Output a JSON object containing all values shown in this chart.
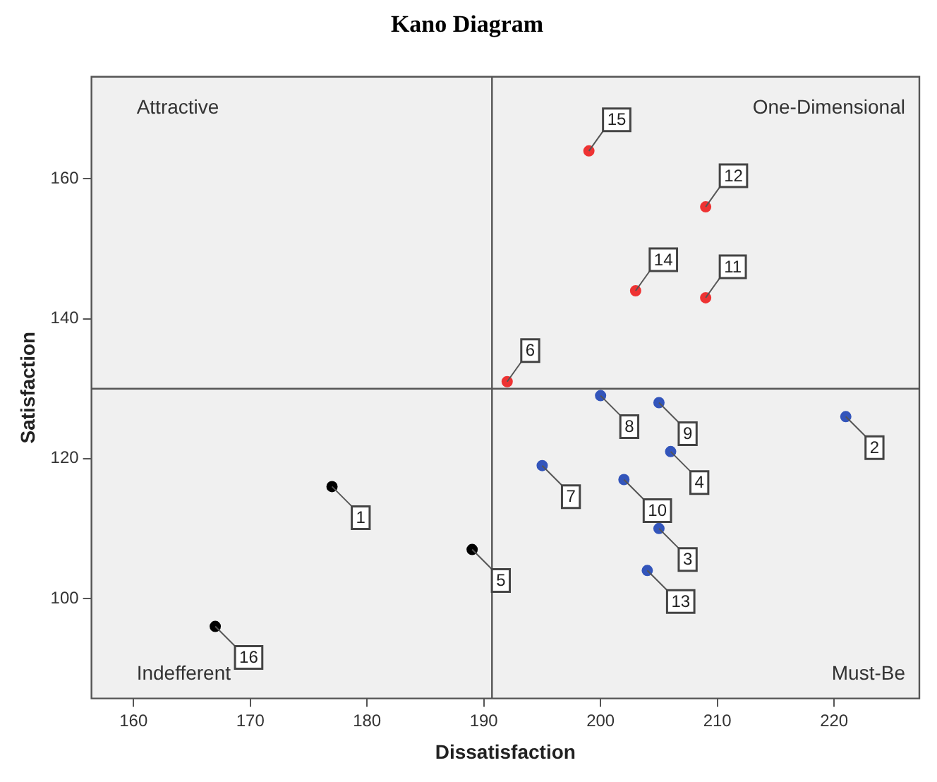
{
  "chart_data": {
    "type": "scatter",
    "title": "Kano Diagram",
    "xlabel": "Dissatisfaction",
    "ylabel": "Satisfaction",
    "series": [
      {
        "color": "#000000",
        "x": [
          177,
          189,
          167
        ],
        "values": [
          116,
          107,
          96
        ]
      },
      {
        "color": "#ee3333",
        "x": [
          199,
          209,
          203,
          209,
          192
        ],
        "values": [
          164,
          156,
          144,
          143,
          131
        ]
      },
      {
        "color": "#3355bb",
        "x": [
          200,
          205,
          221,
          206,
          195,
          202,
          205,
          204
        ],
        "values": [
          129,
          128,
          126,
          121,
          119,
          117,
          110,
          104
        ]
      }
    ],
    "xlim": [
      156.4,
      227.3
    ],
    "xticks": [
      160,
      170,
      180,
      190,
      200,
      210,
      220
    ],
    "ylim": [
      85.7,
      174.6
    ],
    "yticks": [
      100,
      120,
      140,
      160
    ],
    "ref_lines": [
      {
        "axis": "x",
        "value": 190.7,
        "color": "#555555"
      },
      {
        "axis": "y",
        "value": 130,
        "color": "#555555"
      }
    ],
    "annotations": [
      "Attractive",
      "One-Dimensional",
      "Indefferent",
      "Must-Be",
      {
        "text": "1",
        "x": 177,
        "y": 116
      },
      {
        "text": "5",
        "x": 189,
        "y": 107
      },
      {
        "text": "16",
        "x": 167,
        "y": 96
      },
      {
        "text": "15",
        "x": 199,
        "y": 164
      },
      {
        "text": "12",
        "x": 209,
        "y": 156
      },
      {
        "text": "14",
        "x": 203,
        "y": 144
      },
      {
        "text": "11",
        "x": 209,
        "y": 143
      },
      {
        "text": "6",
        "x": 192,
        "y": 131
      },
      {
        "text": "8",
        "x": 200,
        "y": 129
      },
      {
        "text": "9",
        "x": 205,
        "y": 128
      },
      {
        "text": "2",
        "x": 221,
        "y": 126
      },
      {
        "text": "4",
        "x": 206,
        "y": 121
      },
      {
        "text": "7",
        "x": 195,
        "y": 119
      },
      {
        "text": "10",
        "x": 202,
        "y": 117
      },
      {
        "text": "3",
        "x": 205,
        "y": 110
      },
      {
        "text": "13",
        "x": 204,
        "y": 104
      }
    ],
    "marker": "circle"
  }
}
